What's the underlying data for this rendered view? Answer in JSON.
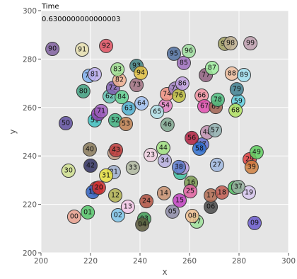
{
  "chart_data": {
    "type": "scatter",
    "title": "Time",
    "subtitle": "0.6300000000000003",
    "xlabel": "x",
    "ylabel": "y",
    "xlim": [
      200,
      300
    ],
    "ylim": [
      200,
      300
    ],
    "xticks": [
      "200",
      "220",
      "240",
      "260",
      "280",
      "300"
    ],
    "yticks": [
      "200",
      "220",
      "240",
      "260",
      "280",
      "300"
    ],
    "grid": true,
    "background": "#e5e5e5",
    "points": [
      {
        "label": "00",
        "x": 213.4,
        "y": 214.9,
        "color": "#e9a08e"
      },
      {
        "label": "01",
        "x": 218.9,
        "y": 216.7,
        "color": "#55c66a"
      },
      {
        "label": "02",
        "x": 231.1,
        "y": 215.5,
        "color": "#7fc6ea"
      },
      {
        "label": "03",
        "x": 241.7,
        "y": 214.0,
        "color": "#3f9a55"
      },
      {
        "label": "04",
        "x": 240.9,
        "y": 211.7,
        "color": "#5c5a3c"
      },
      {
        "label": "05",
        "x": 253.1,
        "y": 217.0,
        "color": "#8c8aa6"
      },
      {
        "label": "06",
        "x": 268.6,
        "y": 219.0,
        "color": "#4a4a4a"
      },
      {
        "label": "07",
        "x": 262.9,
        "y": 212.9,
        "color": "#9ee09a"
      },
      {
        "label": "08",
        "x": 261.1,
        "y": 215.2,
        "color": "#f0c090"
      },
      {
        "label": "09",
        "x": 286.3,
        "y": 212.3,
        "color": "#6a5acd"
      },
      {
        "label": "10",
        "x": 222.3,
        "y": 226.6,
        "color": "#cc3333"
      },
      {
        "label": "11",
        "x": 220.9,
        "y": 225.1,
        "color": "#3060c0"
      },
      {
        "label": "12",
        "x": 230.0,
        "y": 223.7,
        "color": "#b0b050"
      },
      {
        "label": "13",
        "x": 235.1,
        "y": 219.0,
        "color": "#f4c8e8"
      },
      {
        "label": "14",
        "x": 249.7,
        "y": 224.6,
        "color": "#c89070"
      },
      {
        "label": "15",
        "x": 256.0,
        "y": 221.6,
        "color": "#c040c0"
      },
      {
        "label": "16",
        "x": 260.6,
        "y": 228.9,
        "color": "#7a9a50"
      },
      {
        "label": "17",
        "x": 268.6,
        "y": 223.7,
        "color": "#b06a50"
      },
      {
        "label": "18",
        "x": 273.1,
        "y": 224.9,
        "color": "#c05a50"
      },
      {
        "label": "19",
        "x": 284.0,
        "y": 224.9,
        "color": "#d8c8f0"
      },
      {
        "label": "20",
        "x": 223.4,
        "y": 226.9,
        "color": "#d03030"
      },
      {
        "label": "21",
        "x": 229.4,
        "y": 233.3,
        "color": "#a0b0d0"
      },
      {
        "label": "23",
        "x": 244.3,
        "y": 240.4,
        "color": "#f0d0e0"
      },
      {
        "label": "24",
        "x": 242.6,
        "y": 221.3,
        "color": "#b05040"
      },
      {
        "label": "25",
        "x": 260.3,
        "y": 225.4,
        "color": "#e060a0"
      },
      {
        "label": "26",
        "x": 256.3,
        "y": 233.0,
        "color": "#40c0a0"
      },
      {
        "label": "27",
        "x": 271.1,
        "y": 236.3,
        "color": "#a0b8e0"
      },
      {
        "label": "28",
        "x": 278.3,
        "y": 226.9,
        "color": "#50c060"
      },
      {
        "label": "29",
        "x": 284.3,
        "y": 238.6,
        "color": "#e04040"
      },
      {
        "label": "30",
        "x": 211.1,
        "y": 233.9,
        "color": "#d0e090"
      },
      {
        "label": "31",
        "x": 226.3,
        "y": 231.9,
        "color": "#e8e040"
      },
      {
        "label": "33",
        "x": 237.1,
        "y": 235.1,
        "color": "#b0b8a0"
      },
      {
        "label": "34",
        "x": 250.0,
        "y": 238.0,
        "color": "#b8b0e0"
      },
      {
        "label": "35",
        "x": 257.1,
        "y": 235.1,
        "color": "#c0a0e0"
      },
      {
        "label": "37",
        "x": 279.7,
        "y": 227.2,
        "color": "#98b0a0"
      },
      {
        "label": "38",
        "x": 255.7,
        "y": 235.4,
        "color": "#6080d0"
      },
      {
        "label": "39",
        "x": 285.1,
        "y": 235.4,
        "color": "#d08040"
      },
      {
        "label": "40",
        "x": 219.7,
        "y": 242.7,
        "color": "#8a7a5a"
      },
      {
        "label": "41",
        "x": 229.7,
        "y": 241.2,
        "color": "#c09880"
      },
      {
        "label": "42",
        "x": 220.0,
        "y": 236.0,
        "color": "#303060"
      },
      {
        "label": "43",
        "x": 230.3,
        "y": 242.4,
        "color": "#c04040"
      },
      {
        "label": "44",
        "x": 249.4,
        "y": 243.3,
        "color": "#a0e080"
      },
      {
        "label": "46",
        "x": 251.1,
        "y": 252.9,
        "color": "#80a890"
      },
      {
        "label": "47",
        "x": 265.1,
        "y": 244.7,
        "color": "#6070d0"
      },
      {
        "label": "48",
        "x": 267.1,
        "y": 249.7,
        "color": "#c090b0"
      },
      {
        "label": "49",
        "x": 287.1,
        "y": 241.5,
        "color": "#60d060"
      },
      {
        "label": "50",
        "x": 210.0,
        "y": 253.5,
        "color": "#6050a0"
      },
      {
        "label": "51",
        "x": 221.7,
        "y": 254.7,
        "color": "#40c0c0"
      },
      {
        "label": "52",
        "x": 230.0,
        "y": 254.7,
        "color": "#40b080"
      },
      {
        "label": "53",
        "x": 234.3,
        "y": 253.2,
        "color": "#c08050"
      },
      {
        "label": "54",
        "x": 250.3,
        "y": 260.8,
        "color": "#e080c0"
      },
      {
        "label": "56",
        "x": 260.9,
        "y": 247.4,
        "color": "#b02040"
      },
      {
        "label": "57",
        "x": 270.3,
        "y": 250.6,
        "color": "#90b0b0"
      },
      {
        "label": "58",
        "x": 264.0,
        "y": 243.0,
        "color": "#3070d0"
      },
      {
        "label": "59",
        "x": 279.7,
        "y": 262.6,
        "color": "#60d0e0"
      },
      {
        "label": "61",
        "x": 223.1,
        "y": 257.3,
        "color": "#9040b0"
      },
      {
        "label": "62",
        "x": 227.7,
        "y": 264.6,
        "color": "#60c0b0"
      },
      {
        "label": "63",
        "x": 235.4,
        "y": 259.6,
        "color": "#50b0d0"
      },
      {
        "label": "64",
        "x": 240.6,
        "y": 261.7,
        "color": "#a0c0f0"
      },
      {
        "label": "65",
        "x": 246.9,
        "y": 258.2,
        "color": "#b0e0e8"
      },
      {
        "label": "66",
        "x": 264.9,
        "y": 264.9,
        "color": "#f090a0"
      },
      {
        "label": "67",
        "x": 266.0,
        "y": 260.5,
        "color": "#e050b0"
      },
      {
        "label": "68",
        "x": 278.6,
        "y": 258.8,
        "color": "#b0e060"
      },
      {
        "label": "69",
        "x": 270.6,
        "y": 260.2,
        "color": "#a06050"
      },
      {
        "label": "70",
        "x": 219.4,
        "y": 273.1,
        "color": "#80b0f0"
      },
      {
        "label": "71",
        "x": 224.3,
        "y": 258.5,
        "color": "#a060c0"
      },
      {
        "label": "72",
        "x": 229.1,
        "y": 268.1,
        "color": "#8060b0"
      },
      {
        "label": "73",
        "x": 238.6,
        "y": 269.3,
        "color": "#a07080"
      },
      {
        "label": "74",
        "x": 250.9,
        "y": 265.5,
        "color": "#f09080"
      },
      {
        "label": "75",
        "x": 254.3,
        "y": 267.8,
        "color": "#a080c0"
      },
      {
        "label": "76",
        "x": 255.7,
        "y": 264.9,
        "color": "#c0c040"
      },
      {
        "label": "77",
        "x": 266.6,
        "y": 273.4,
        "color": "#906080"
      },
      {
        "label": "78",
        "x": 271.4,
        "y": 263.2,
        "color": "#50c080"
      },
      {
        "label": "79",
        "x": 279.1,
        "y": 267.5,
        "color": "#408090"
      },
      {
        "label": "80",
        "x": 217.1,
        "y": 266.7,
        "color": "#40a080"
      },
      {
        "label": "81",
        "x": 221.7,
        "y": 273.7,
        "color": "#c0b0f0"
      },
      {
        "label": "82",
        "x": 231.7,
        "y": 271.3,
        "color": "#f0b090"
      },
      {
        "label": "83",
        "x": 230.9,
        "y": 275.7,
        "color": "#a0e090"
      },
      {
        "label": "84",
        "x": 232.6,
        "y": 264.3,
        "color": "#60d090"
      },
      {
        "label": "85",
        "x": 257.7,
        "y": 278.4,
        "color": "#a070c0"
      },
      {
        "label": "86",
        "x": 257.1,
        "y": 269.9,
        "color": "#c0a0e0"
      },
      {
        "label": "87",
        "x": 269.1,
        "y": 276.3,
        "color": "#a0f0a0"
      },
      {
        "label": "88",
        "x": 277.1,
        "y": 274.0,
        "color": "#f0c0a0"
      },
      {
        "label": "89",
        "x": 282.0,
        "y": 273.4,
        "color": "#a0e0f0"
      },
      {
        "label": "90",
        "x": 204.6,
        "y": 284.2,
        "color": "#8060a0"
      },
      {
        "label": "91",
        "x": 216.6,
        "y": 283.9,
        "color": "#e8e0b0"
      },
      {
        "label": "92",
        "x": 226.3,
        "y": 285.4,
        "color": "#e05060"
      },
      {
        "label": "93",
        "x": 238.6,
        "y": 277.2,
        "color": "#408080"
      },
      {
        "label": "94",
        "x": 240.3,
        "y": 274.3,
        "color": "#e0c040"
      },
      {
        "label": "95",
        "x": 253.7,
        "y": 282.2,
        "color": "#5070a0"
      },
      {
        "label": "96",
        "x": 259.7,
        "y": 283.3,
        "color": "#a0e0a0"
      },
      {
        "label": "97",
        "x": 274.3,
        "y": 286.3,
        "color": "#a0a060"
      },
      {
        "label": "98",
        "x": 276.6,
        "y": 286.5,
        "color": "#c0b090"
      },
      {
        "label": "99",
        "x": 284.6,
        "y": 286.5,
        "color": "#c0a0b0"
      }
    ]
  }
}
